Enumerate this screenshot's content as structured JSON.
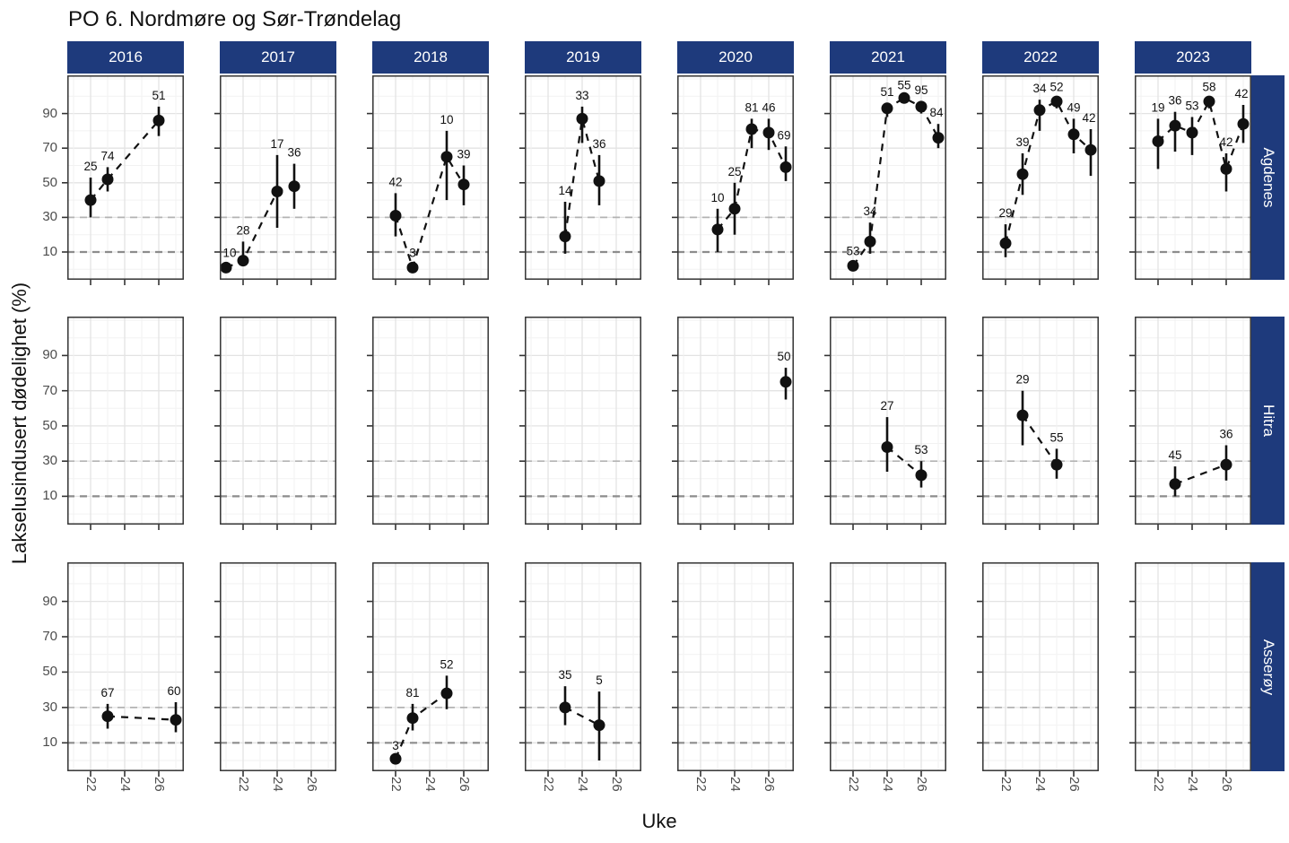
{
  "colors": {
    "strip_fill": "#1e3a7c",
    "strip_text": "#ffffff",
    "point": "#111111",
    "dashed_line": "#111111",
    "ref_line_30": "#b3b3b3",
    "ref_line_10": "#8c8c8c",
    "grid_major": "#e3e3e3",
    "grid_minor": "#f2f2f2",
    "panel_border": "#333333",
    "tick_mark": "#333333",
    "axis_text": "#4d4d4d",
    "title_text": "#111111"
  },
  "chart_data": {
    "type": "scatter",
    "title": "PO 6. Nordmøre og Sør-Trøndelag",
    "xlabel": "Uke",
    "ylabel": "Lakselusindusert dødelighet (%)",
    "facet_columns_years": [
      "2016",
      "2017",
      "2018",
      "2019",
      "2020",
      "2021",
      "2022",
      "2023"
    ],
    "facet_rows_locations": [
      "Agdenes",
      "Hitra",
      "Asserøy"
    ],
    "x_ticks": [
      22,
      24,
      26
    ],
    "y_ticks": [
      10,
      30,
      50,
      70,
      90
    ],
    "xlim": [
      20.6,
      27.5
    ],
    "ylim": [
      -6,
      112
    ],
    "reference_lines_y": [
      30,
      10
    ],
    "grid": true,
    "legend": "none",
    "panels": [
      {
        "location": "Agdenes",
        "year": "2016",
        "points": [
          {
            "week": 22,
            "value": 40,
            "lo": 30,
            "hi": 53,
            "label": "25"
          },
          {
            "week": 23,
            "value": 52,
            "lo": 45,
            "hi": 59,
            "label": "74"
          },
          {
            "week": 26,
            "value": 86,
            "lo": 77,
            "hi": 94,
            "label": "51"
          }
        ]
      },
      {
        "location": "Agdenes",
        "year": "2017",
        "points": [
          {
            "week": 21,
            "value": 1,
            "lo": 0,
            "hi": 3,
            "label": "10"
          },
          {
            "week": 22,
            "value": 5,
            "lo": 2,
            "hi": 16,
            "label": "28"
          },
          {
            "week": 24,
            "value": 45,
            "lo": 24,
            "hi": 66,
            "label": "17"
          },
          {
            "week": 25,
            "value": 48,
            "lo": 35,
            "hi": 61,
            "label": "36"
          }
        ]
      },
      {
        "location": "Agdenes",
        "year": "2018",
        "points": [
          {
            "week": 22,
            "value": 31,
            "lo": 19,
            "hi": 44,
            "label": "42"
          },
          {
            "week": 23,
            "value": 1,
            "lo": 0,
            "hi": 3,
            "label": "3"
          },
          {
            "week": 25,
            "value": 65,
            "lo": 40,
            "hi": 80,
            "label": "10"
          },
          {
            "week": 26,
            "value": 49,
            "lo": 37,
            "hi": 60,
            "label": "39"
          }
        ]
      },
      {
        "location": "Agdenes",
        "year": "2019",
        "points": [
          {
            "week": 23,
            "value": 19,
            "lo": 9,
            "hi": 39,
            "label": "14"
          },
          {
            "week": 24,
            "value": 87,
            "lo": 73,
            "hi": 94,
            "label": "33"
          },
          {
            "week": 25,
            "value": 51,
            "lo": 37,
            "hi": 66,
            "label": "36"
          }
        ]
      },
      {
        "location": "Agdenes",
        "year": "2020",
        "points": [
          {
            "week": 23,
            "value": 23,
            "lo": 10,
            "hi": 35,
            "label": "10"
          },
          {
            "week": 24,
            "value": 35,
            "lo": 20,
            "hi": 50,
            "label": "25"
          },
          {
            "week": 25,
            "value": 81,
            "lo": 70,
            "hi": 87,
            "label": "81"
          },
          {
            "week": 26,
            "value": 79,
            "lo": 69,
            "hi": 87,
            "label": "46"
          },
          {
            "week": 27,
            "value": 59,
            "lo": 51,
            "hi": 71,
            "label": "69"
          }
        ]
      },
      {
        "location": "Agdenes",
        "year": "2021",
        "points": [
          {
            "week": 22,
            "value": 2,
            "lo": 1,
            "hi": 4,
            "label": "53"
          },
          {
            "week": 23,
            "value": 16,
            "lo": 9,
            "hi": 27,
            "label": "34"
          },
          {
            "week": 24,
            "value": 93,
            "lo": 88,
            "hi": 96,
            "label": "51"
          },
          {
            "week": 25,
            "value": 99,
            "lo": 96,
            "hi": 100,
            "label": "55"
          },
          {
            "week": 26,
            "value": 94,
            "lo": 90,
            "hi": 97,
            "label": "95"
          },
          {
            "week": 27,
            "value": 76,
            "lo": 70,
            "hi": 84,
            "label": "84"
          }
        ]
      },
      {
        "location": "Agdenes",
        "year": "2022",
        "points": [
          {
            "week": 22,
            "value": 15,
            "lo": 7,
            "hi": 26,
            "label": "29"
          },
          {
            "week": 23,
            "value": 55,
            "lo": 43,
            "hi": 67,
            "label": "39"
          },
          {
            "week": 24,
            "value": 92,
            "lo": 80,
            "hi": 98,
            "label": "34"
          },
          {
            "week": 25,
            "value": 97,
            "lo": 93,
            "hi": 99,
            "label": "52"
          },
          {
            "week": 26,
            "value": 78,
            "lo": 67,
            "hi": 87,
            "label": "49"
          },
          {
            "week": 27,
            "value": 69,
            "lo": 54,
            "hi": 81,
            "label": "42"
          }
        ]
      },
      {
        "location": "Agdenes",
        "year": "2023",
        "points": [
          {
            "week": 22,
            "value": 74,
            "lo": 58,
            "hi": 87,
            "label": "19"
          },
          {
            "week": 23,
            "value": 83,
            "lo": 68,
            "hi": 91,
            "label": "36"
          },
          {
            "week": 24,
            "value": 79,
            "lo": 66,
            "hi": 88,
            "label": "53"
          },
          {
            "week": 25,
            "value": 97,
            "lo": 93,
            "hi": 99,
            "label": "58"
          },
          {
            "week": 26,
            "value": 58,
            "lo": 45,
            "hi": 67,
            "label": "42"
          },
          {
            "week": 27,
            "value": 84,
            "lo": 73,
            "hi": 95,
            "label": "42"
          }
        ]
      },
      {
        "location": "Hitra",
        "year": "2016",
        "points": []
      },
      {
        "location": "Hitra",
        "year": "2017",
        "points": []
      },
      {
        "location": "Hitra",
        "year": "2018",
        "points": []
      },
      {
        "location": "Hitra",
        "year": "2019",
        "points": []
      },
      {
        "location": "Hitra",
        "year": "2020",
        "points": [
          {
            "week": 27,
            "value": 75,
            "lo": 65,
            "hi": 83,
            "label": "50"
          }
        ]
      },
      {
        "location": "Hitra",
        "year": "2021",
        "points": [
          {
            "week": 24,
            "value": 38,
            "lo": 24,
            "hi": 55,
            "label": "27"
          },
          {
            "week": 26,
            "value": 22,
            "lo": 15,
            "hi": 30,
            "label": "53"
          }
        ]
      },
      {
        "location": "Hitra",
        "year": "2022",
        "points": [
          {
            "week": 23,
            "value": 56,
            "lo": 39,
            "hi": 70,
            "label": "29"
          },
          {
            "week": 25,
            "value": 28,
            "lo": 20,
            "hi": 37,
            "label": "55"
          }
        ]
      },
      {
        "location": "Hitra",
        "year": "2023",
        "points": [
          {
            "week": 23,
            "value": 17,
            "lo": 10,
            "hi": 27,
            "label": "45"
          },
          {
            "week": 26,
            "value": 28,
            "lo": 19,
            "hi": 39,
            "label": "36"
          }
        ]
      },
      {
        "location": "Asserøy",
        "year": "2016",
        "points": [
          {
            "week": 23,
            "value": 25,
            "lo": 18,
            "hi": 32,
            "label": "67"
          },
          {
            "week": 27,
            "value": 23,
            "lo": 16,
            "hi": 33,
            "label": "60"
          }
        ]
      },
      {
        "location": "Asserøy",
        "year": "2017",
        "points": []
      },
      {
        "location": "Asserøy",
        "year": "2018",
        "points": [
          {
            "week": 22,
            "value": 1,
            "lo": 0,
            "hi": 2,
            "label": "3"
          },
          {
            "week": 23,
            "value": 24,
            "lo": 17,
            "hi": 32,
            "label": "81"
          },
          {
            "week": 25,
            "value": 38,
            "lo": 29,
            "hi": 48,
            "label": "52"
          }
        ]
      },
      {
        "location": "Asserøy",
        "year": "2019",
        "points": [
          {
            "week": 23,
            "value": 30,
            "lo": 20,
            "hi": 42,
            "label": "35"
          },
          {
            "week": 25,
            "value": 20,
            "lo": 0,
            "hi": 39,
            "label": "5"
          }
        ]
      },
      {
        "location": "Asserøy",
        "year": "2020",
        "points": []
      },
      {
        "location": "Asserøy",
        "year": "2021",
        "points": []
      },
      {
        "location": "Asserøy",
        "year": "2022",
        "points": []
      },
      {
        "location": "Asserøy",
        "year": "2023",
        "points": []
      }
    ]
  }
}
